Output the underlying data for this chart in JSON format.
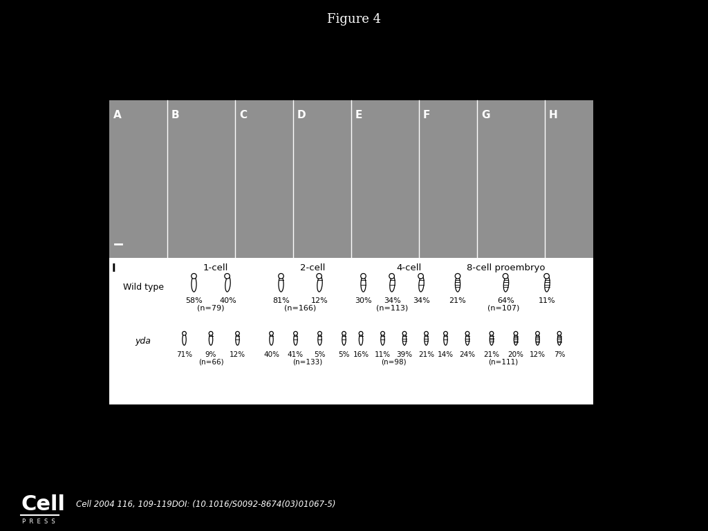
{
  "title": "Figure 4",
  "background_color": "#000000",
  "panel_bg": "#ffffff",
  "title_color": "#ffffff",
  "title_fontsize": 13,
  "footer_text": "Cell 2004 116, 109-119DOI: (10.1016/S0092-8674(03)01067-5)",
  "footer_fontsize": 9,
  "micro_panel": {
    "labels": [
      "A",
      "B",
      "C",
      "D",
      "E",
      "F",
      "G",
      "H"
    ]
  },
  "diagram_section": {
    "stage_headers": [
      "1-cell",
      "2-cell",
      "4-cell",
      "8-cell proembryo"
    ],
    "wildtype": {
      "1cell": {
        "percentages": [
          "58%",
          "40%"
        ],
        "n": "(n=79)"
      },
      "2cell": {
        "percentages": [
          "81%",
          "12%"
        ],
        "n": "(n=166)"
      },
      "4cell": {
        "percentages": [
          "30%",
          "34%",
          "34%"
        ],
        "n": "(n=113)"
      },
      "8cell": {
        "percentages": [
          "21%",
          "64%",
          "11%"
        ],
        "n": "(n=107)"
      }
    },
    "yda": {
      "1cell": {
        "percentages": [
          "71%",
          "9%",
          "12%"
        ],
        "n": "(n=66)"
      },
      "2cell": {
        "percentages": [
          "40%",
          "41%",
          "5%",
          "5%"
        ],
        "n": "(n=133)"
      },
      "4cell": {
        "percentages": [
          "16%",
          "11%",
          "39%",
          "21%"
        ],
        "n": "(n=98)"
      },
      "8cell": {
        "percentages": [
          "14%",
          "24%",
          "21%",
          "20%",
          "12%",
          "7%"
        ],
        "n": "(n=111)"
      }
    }
  }
}
